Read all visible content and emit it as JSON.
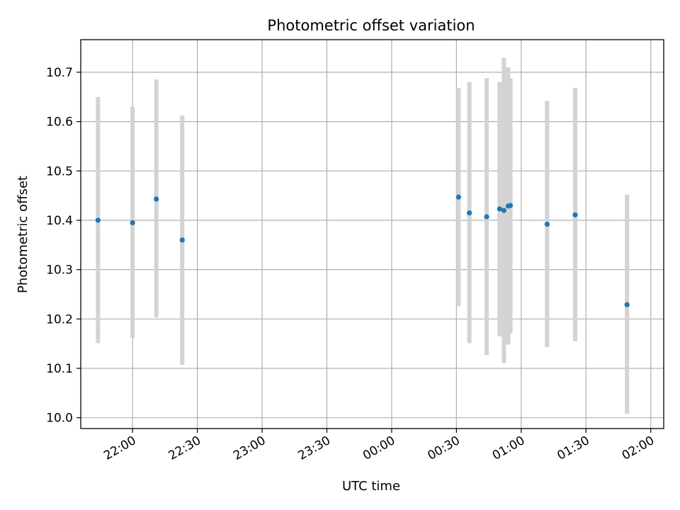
{
  "chart_data": {
    "type": "scatter",
    "title": "Photometric offset variation",
    "xlabel": "UTC time",
    "ylabel": "Photometric offset",
    "x_axis_kind": "time",
    "x_ticks": [
      "22:00",
      "22:30",
      "23:00",
      "23:30",
      "00:00",
      "00:30",
      "01:00",
      "01:30",
      "02:00"
    ],
    "xlim": [
      "21:36",
      "02:06"
    ],
    "ylim": [
      9.978,
      10.766
    ],
    "y_ticks": [
      10.0,
      10.1,
      10.2,
      10.3,
      10.4,
      10.5,
      10.6,
      10.7
    ],
    "grid": true,
    "point_color": "#1f77b4",
    "errorbar_color": "#d3d3d3",
    "points": [
      {
        "x": "21:44",
        "y": 10.4,
        "err_low": 10.151,
        "err_high": 10.65
      },
      {
        "x": "22:00",
        "y": 10.395,
        "err_low": 10.162,
        "err_high": 10.63
      },
      {
        "x": "22:11",
        "y": 10.443,
        "err_low": 10.203,
        "err_high": 10.685
      },
      {
        "x": "22:23",
        "y": 10.36,
        "err_low": 10.107,
        "err_high": 10.612
      },
      {
        "x": "00:31",
        "y": 10.447,
        "err_low": 10.226,
        "err_high": 10.668
      },
      {
        "x": "00:36",
        "y": 10.415,
        "err_low": 10.151,
        "err_high": 10.68
      },
      {
        "x": "00:44",
        "y": 10.407,
        "err_low": 10.127,
        "err_high": 10.688
      },
      {
        "x": "00:50",
        "y": 10.423,
        "err_low": 10.165,
        "err_high": 10.68
      },
      {
        "x": "00:52",
        "y": 10.42,
        "err_low": 10.111,
        "err_high": 10.729
      },
      {
        "x": "00:54",
        "y": 10.429,
        "err_low": 10.148,
        "err_high": 10.71
      },
      {
        "x": "00:55",
        "y": 10.43,
        "err_low": 10.171,
        "err_high": 10.688
      },
      {
        "x": "01:12",
        "y": 10.392,
        "err_low": 10.143,
        "err_high": 10.642
      },
      {
        "x": "01:25",
        "y": 10.411,
        "err_low": 10.155,
        "err_high": 10.668
      },
      {
        "x": "01:49",
        "y": 10.229,
        "err_low": 10.008,
        "err_high": 10.452
      }
    ]
  }
}
